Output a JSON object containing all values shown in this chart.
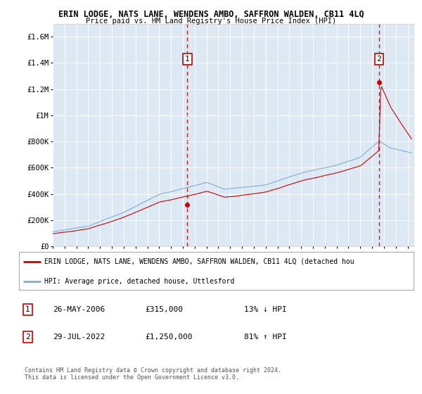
{
  "title": "ERIN LODGE, NATS LANE, WENDENS AMBO, SAFFRON WALDEN, CB11 4LQ",
  "subtitle": "Price paid vs. HM Land Registry's House Price Index (HPI)",
  "ylim": [
    0,
    1700000
  ],
  "yticks": [
    0,
    200000,
    400000,
    600000,
    800000,
    1000000,
    1200000,
    1400000,
    1600000
  ],
  "ytick_labels": [
    "£0",
    "£200K",
    "£400K",
    "£600K",
    "£800K",
    "£1M",
    "£1.2M",
    "£1.4M",
    "£1.6M"
  ],
  "hpi_color": "#7bafd4",
  "price_color": "#cc0000",
  "bg_color": "#dde8f5",
  "grid_color": "#ffffff",
  "sale1_year": 2006.38,
  "sale1_price": 315000,
  "sale1_label": "1",
  "sale1_date": "26-MAY-2006",
  "sale1_pct": "13% ↓ HPI",
  "sale2_year": 2022.57,
  "sale2_price": 1250000,
  "sale2_label": "2",
  "sale2_date": "29-JUL-2022",
  "sale2_pct": "81% ↑ HPI",
  "legend_price_label": "ERIN LODGE, NATS LANE, WENDENS AMBO, SAFFRON WALDEN, CB11 4LQ (detached hou",
  "legend_hpi_label": "HPI: Average price, detached house, Uttlesford",
  "footnote": "Contains HM Land Registry data © Crown copyright and database right 2024.\nThis data is licensed under the Open Government Licence v3.0."
}
